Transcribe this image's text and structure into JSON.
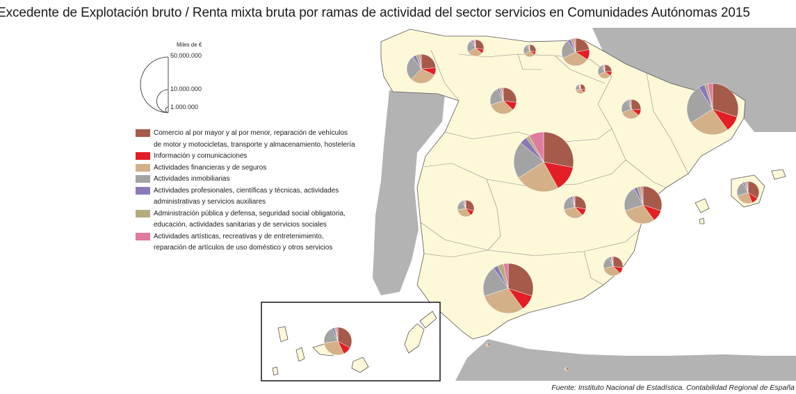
{
  "title": "Excedente de Explotación bruto / Renta mixta bruta por ramas de actividad del sector servicios en Comunidades Autónomas 2015",
  "scale": {
    "unit": "Miles de €",
    "values": [
      "50.000.000",
      "10.000.000",
      "1.000.000"
    ]
  },
  "legend": [
    {
      "label": "Comercio al por mayor y al por menor, reparación de vehículos\nde motor y motocicletas, transporte y almacenamiento, hostelería",
      "color": "#a55a4a"
    },
    {
      "label": "Información y comunicaciones",
      "color": "#e31e24"
    },
    {
      "label": "Actividades financieras y de seguros",
      "color": "#d4b088"
    },
    {
      "label": "Actividades inmobiliarias",
      "color": "#a3a3a3"
    },
    {
      "label": "Actividades profesionales, científicas y técnicas, actividades\nadministrativas y servicios auxiliares",
      "color": "#8a78b8"
    },
    {
      "label": "Administración pública y defensa, seguridad social obligatoria,\neducación, actividades sanitarias y de servicios sociales",
      "color": "#b5ac7e"
    },
    {
      "label": "Actividades artísticas, recreativas y de entretenimiento,\nreparación de artículos de uso doméstico y otros servicios",
      "color": "#e07ba0"
    }
  ],
  "map_colors": {
    "spain": "#fdf8d8",
    "neighbors": "#b3b3b3",
    "sea": "#ffffff",
    "border": "#555555"
  },
  "regions": [
    {
      "name": "Galicia",
      "radius": 21,
      "shares": [
        0.24,
        0.08,
        0.3,
        0.28,
        0.04,
        0.04,
        0.02
      ]
    },
    {
      "name": "Asturias",
      "radius": 12,
      "shares": [
        0.28,
        0.08,
        0.3,
        0.25,
        0.04,
        0.03,
        0.02
      ]
    },
    {
      "name": "Cantabria",
      "radius": 9,
      "shares": [
        0.28,
        0.08,
        0.3,
        0.25,
        0.04,
        0.03,
        0.02
      ]
    },
    {
      "name": "País Vasco",
      "radius": 20,
      "shares": [
        0.22,
        0.12,
        0.34,
        0.22,
        0.04,
        0.04,
        0.02
      ]
    },
    {
      "name": "Navarra",
      "radius": 10,
      "shares": [
        0.25,
        0.1,
        0.32,
        0.25,
        0.03,
        0.03,
        0.02
      ]
    },
    {
      "name": "La Rioja",
      "radius": 7,
      "shares": [
        0.27,
        0.1,
        0.33,
        0.22,
        0.03,
        0.03,
        0.02
      ]
    },
    {
      "name": "Castilla y León",
      "radius": 19,
      "shares": [
        0.27,
        0.1,
        0.33,
        0.22,
        0.03,
        0.03,
        0.02
      ]
    },
    {
      "name": "Aragón",
      "radius": 14,
      "shares": [
        0.26,
        0.1,
        0.33,
        0.23,
        0.03,
        0.03,
        0.02
      ]
    },
    {
      "name": "Cataluña",
      "radius": 37,
      "shares": [
        0.3,
        0.1,
        0.26,
        0.25,
        0.04,
        0.02,
        0.03
      ]
    },
    {
      "name": "Comunidad de Madrid",
      "radius": 43,
      "shares": [
        0.28,
        0.14,
        0.24,
        0.2,
        0.04,
        0.02,
        0.08
      ]
    },
    {
      "name": "Extremadura",
      "radius": 12,
      "shares": [
        0.3,
        0.1,
        0.32,
        0.2,
        0.03,
        0.03,
        0.02
      ]
    },
    {
      "name": "Castilla-La Mancha",
      "radius": 16,
      "shares": [
        0.28,
        0.1,
        0.33,
        0.22,
        0.03,
        0.02,
        0.02
      ]
    },
    {
      "name": "Comunidad Valenciana",
      "radius": 27,
      "shares": [
        0.3,
        0.1,
        0.3,
        0.22,
        0.03,
        0.03,
        0.02
      ]
    },
    {
      "name": "Islas Baleares",
      "radius": 16,
      "shares": [
        0.34,
        0.1,
        0.26,
        0.22,
        0.03,
        0.03,
        0.02
      ]
    },
    {
      "name": "Región de Murcia",
      "radius": 14,
      "shares": [
        0.28,
        0.1,
        0.33,
        0.22,
        0.03,
        0.02,
        0.02
      ]
    },
    {
      "name": "Andalucía",
      "radius": 36,
      "shares": [
        0.3,
        0.1,
        0.3,
        0.2,
        0.03,
        0.04,
        0.03
      ]
    },
    {
      "name": "Canarias",
      "radius": 20,
      "shares": [
        0.33,
        0.1,
        0.3,
        0.2,
        0.03,
        0.02,
        0.02
      ]
    },
    {
      "name": "Ceuta",
      "radius": 3,
      "shares": [
        0.4,
        0.1,
        0.3,
        0.2,
        0.0,
        0.0,
        0.0
      ]
    },
    {
      "name": "Melilla",
      "radius": 3,
      "shares": [
        0.4,
        0.1,
        0.3,
        0.2,
        0.0,
        0.0,
        0.0
      ]
    }
  ],
  "source": "Fuente: Instituto Nacional de Estadística. Contabilidad Regional de España"
}
